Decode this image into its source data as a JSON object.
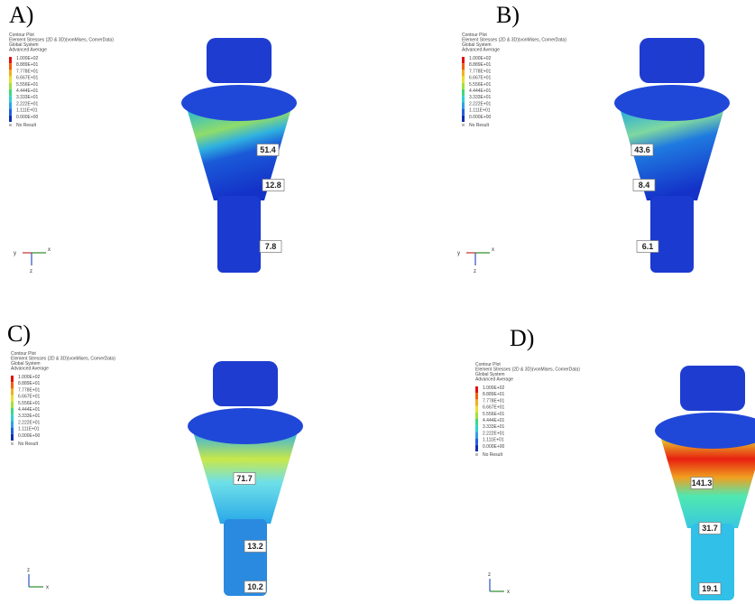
{
  "panels": [
    {
      "label": "A)",
      "legend_header": [
        "Contour Plot",
        "Element Stresses (2D & 3D)(vonMises, CornerData)",
        "Global System",
        "Advanced Average"
      ],
      "legend_values": [
        "1.000E+02",
        "8.889E+01",
        "7.778E+01",
        "6.667E+01",
        "5.556E+01",
        "4.444E+01",
        "3.333E+01",
        "2.222E+01",
        "1.111E+01",
        "0.000E+00"
      ],
      "legend_none": "No Result",
      "annotations": [
        "51.4",
        "12.8",
        "7.8"
      ],
      "axes": [
        "y",
        "x",
        "z"
      ]
    },
    {
      "label": "B)",
      "legend_header": [
        "Contour Plot",
        "Element Stresses (2D & 3D)(vonMises, CornerData)",
        "Global System",
        "Advanced Average"
      ],
      "legend_values": [
        "1.000E+02",
        "8.889E+01",
        "7.778E+01",
        "6.667E+01",
        "5.556E+01",
        "4.444E+01",
        "3.333E+01",
        "2.222E+01",
        "1.111E+01",
        "0.000E+00"
      ],
      "legend_none": "No Result",
      "annotations": [
        "43.6",
        "8.4",
        "6.1"
      ],
      "axes": [
        "y",
        "x",
        "z"
      ]
    },
    {
      "label": "C)",
      "legend_header": [
        "Contour Plot",
        "Element Stresses (2D & 3D)(vonMises, CornerData)",
        "Global System",
        "Advanced Average"
      ],
      "legend_values": [
        "1.000E+02",
        "8.889E+01",
        "7.778E+01",
        "6.667E+01",
        "5.556E+01",
        "4.444E+01",
        "3.333E+01",
        "2.222E+01",
        "1.111E+01",
        "0.000E+00"
      ],
      "legend_none": "No Result",
      "annotations": [
        "71.7",
        "13.2",
        "10.2"
      ],
      "axes": [
        "z",
        "x"
      ]
    },
    {
      "label": "D)",
      "legend_header": [
        "Contour Plot",
        "Element Stresses (2D & 3D)(vonMises, CornerData)",
        "Global System",
        "Advanced Average"
      ],
      "legend_values": [
        "1.000E+02",
        "8.889E+01",
        "7.778E+01",
        "6.667E+01",
        "5.556E+01",
        "4.444E+01",
        "3.333E+01",
        "2.222E+01",
        "1.111E+01",
        "0.000E+00"
      ],
      "legend_none": "No Result",
      "annotations": [
        "141.3",
        "31.7",
        "19.1"
      ],
      "axes": [
        "z",
        "x"
      ]
    }
  ]
}
